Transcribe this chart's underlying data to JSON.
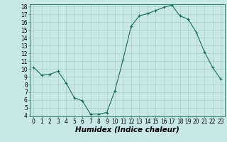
{
  "x": [
    0,
    1,
    2,
    3,
    4,
    5,
    6,
    7,
    8,
    9,
    10,
    11,
    12,
    13,
    14,
    15,
    16,
    17,
    18,
    19,
    20,
    21,
    22,
    23
  ],
  "y": [
    10.2,
    9.2,
    9.3,
    9.7,
    8.2,
    6.3,
    5.9,
    4.2,
    4.2,
    4.4,
    7.2,
    11.2,
    15.5,
    16.8,
    17.1,
    17.5,
    17.9,
    18.2,
    16.8,
    16.4,
    14.7,
    12.2,
    10.2,
    8.7
  ],
  "xlabel": "Humidex (Indice chaleur)",
  "ylim": [
    4,
    18
  ],
  "xlim": [
    -0.5,
    23.5
  ],
  "yticks": [
    4,
    5,
    6,
    7,
    8,
    9,
    10,
    11,
    12,
    13,
    14,
    15,
    16,
    17,
    18
  ],
  "xticks": [
    0,
    1,
    2,
    3,
    4,
    5,
    6,
    7,
    8,
    9,
    10,
    11,
    12,
    13,
    14,
    15,
    16,
    17,
    18,
    19,
    20,
    21,
    22,
    23
  ],
  "line_color": "#1a6b5a",
  "marker": "+",
  "bg_color": "#c8e8e8",
  "grid_color": "#a8cece",
  "tick_fontsize": 5.5,
  "xlabel_fontsize": 7.5
}
